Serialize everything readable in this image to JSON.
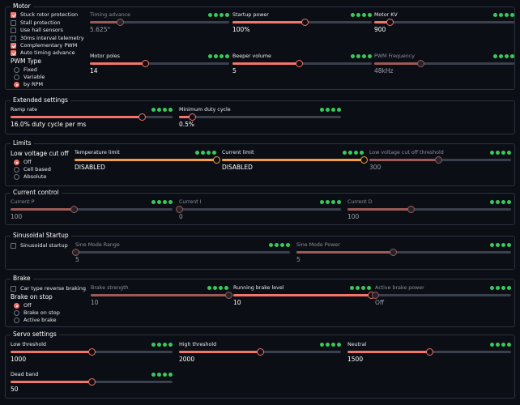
{
  "groups": {
    "motor": {
      "title": "Motor",
      "checkboxes": [
        {
          "label": "Stuck rotor protection",
          "checked": true
        },
        {
          "label": "Stall protection",
          "checked": false
        },
        {
          "label": "Use hall sensors",
          "checked": false
        },
        {
          "label": "30ms interval telemetry",
          "checked": false
        },
        {
          "label": "Complementary PWM",
          "checked": true
        },
        {
          "label": "Auto timing advance",
          "checked": true
        }
      ],
      "pwm_type": {
        "title": "PWM Type",
        "options": [
          {
            "label": "Fixed",
            "checked": false
          },
          {
            "label": "Variable",
            "checked": false
          },
          {
            "label": "by RPM",
            "checked": true
          }
        ]
      },
      "sliders": [
        {
          "label": "Timing advance",
          "value": "5.625°",
          "fraction": 0.22,
          "enabled": false
        },
        {
          "label": "Startup power",
          "value": "100%",
          "fraction": 0.52,
          "enabled": true
        },
        {
          "label": "Motor KV",
          "value": "900",
          "fraction": 0.11,
          "enabled": true
        },
        {
          "label": "Motor poles",
          "value": "14",
          "fraction": 0.4,
          "enabled": true
        },
        {
          "label": "Beeper volume",
          "value": "5",
          "fraction": 0.48,
          "enabled": true
        },
        {
          "label": "PWM Frequency",
          "value": "48kHz",
          "fraction": 0.33,
          "enabled": false
        }
      ]
    },
    "extended": {
      "title": "Extended settings",
      "sliders": [
        {
          "label": "Ramp rate",
          "value": "16.0% duty cycle per ms",
          "fraction": 0.81,
          "enabled": true
        },
        {
          "label": "Minimum duty cycle",
          "value": "0.5%",
          "fraction": 0.08,
          "enabled": true
        }
      ]
    },
    "limits": {
      "title": "Limits",
      "low_voltage": {
        "title": "Low voltage cut off",
        "options": [
          {
            "label": "Off",
            "checked": true
          },
          {
            "label": "Cell based",
            "checked": false
          },
          {
            "label": "Absolute",
            "checked": false
          }
        ]
      },
      "sliders": [
        {
          "label": "Temperature limit",
          "value": "DISABLED",
          "fraction": 1.0,
          "enabled": true,
          "color": "orange"
        },
        {
          "label": "Current limit",
          "value": "DISABLED",
          "fraction": 1.0,
          "enabled": true,
          "color": "orange"
        },
        {
          "label": "Low voltage cut off threshold",
          "value": "300",
          "fraction": 0.49,
          "enabled": false
        }
      ]
    },
    "current_control": {
      "title": "Current control",
      "sliders": [
        {
          "label": "Current P",
          "value": "100",
          "fraction": 0.39,
          "enabled": false
        },
        {
          "label": "Current I",
          "value": "0",
          "fraction": 0.0,
          "enabled": false
        },
        {
          "label": "Current D",
          "value": "100",
          "fraction": 0.39,
          "enabled": false
        }
      ]
    },
    "sinusoidal": {
      "title": "Sinusoidal Startup",
      "checkbox": {
        "label": "Sinusoidal startup",
        "checked": false
      },
      "sliders": [
        {
          "label": "Sine Mode Range",
          "value": "5",
          "fraction": 0.0,
          "enabled": false
        },
        {
          "label": "Sine Mode Power",
          "value": "5",
          "fraction": 0.45,
          "enabled": false
        }
      ]
    },
    "brake": {
      "title": "Brake",
      "checkbox": {
        "label": "Car type reverse braking",
        "checked": false
      },
      "brake_on_stop": {
        "title": "Brake on stop",
        "options": [
          {
            "label": "Off",
            "checked": true
          },
          {
            "label": "Brake on stop",
            "checked": false
          },
          {
            "label": "Active brake",
            "checked": false
          }
        ]
      },
      "sliders": [
        {
          "label": "Brake strength",
          "value": "10",
          "fraction": 1.0,
          "enabled": false
        },
        {
          "label": "Running brake level",
          "value": "10",
          "fraction": 1.0,
          "enabled": true
        },
        {
          "label": "Active brake power",
          "value": "Off",
          "fraction": 0.0,
          "enabled": false
        }
      ]
    },
    "servo": {
      "title": "Servo settings",
      "sliders": [
        {
          "label": "Low threshold",
          "value": "1000",
          "fraction": 0.5,
          "enabled": true
        },
        {
          "label": "High threshold",
          "value": "2000",
          "fraction": 0.5,
          "enabled": true
        },
        {
          "label": "Neutral",
          "value": "1500",
          "fraction": 0.5,
          "enabled": true
        },
        {
          "label": "Dead band",
          "value": "50",
          "fraction": 0.5,
          "enabled": true
        }
      ]
    }
  },
  "colors": {
    "accent": "#f2746b",
    "orange": "#f0a040",
    "led_green": "#38c95a",
    "background": "#0b0e14",
    "border": "#2c3340"
  },
  "icons": {
    "status_leds": "green-dot-icon",
    "checkbox": "checkbox-icon",
    "radio": "radio-icon"
  }
}
